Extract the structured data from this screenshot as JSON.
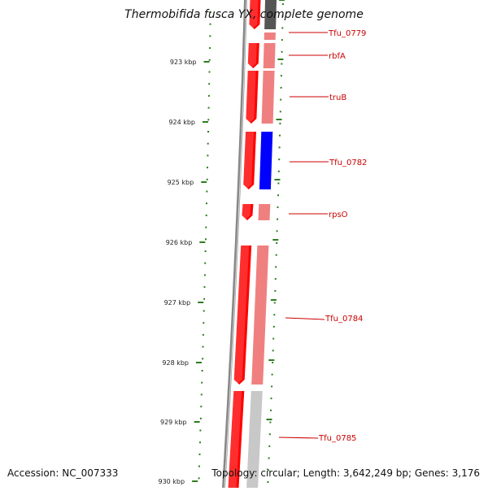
{
  "title": "Thermobifida fusca YX, complete genome",
  "accession": "Accession: NC_007333",
  "summary": "Topology: circular; Length: 3,642,249 bp; Genes: 3,176",
  "colors": {
    "tick": "#2e7d1f",
    "ruler": "#888888",
    "forward_gene": "#ff0000",
    "forward_shade": "#f08080",
    "reverse_blue": "#0000ff",
    "dark_gene": "#555555",
    "light_gene": "#c8c8c8",
    "label": "#cc0000"
  },
  "scale_labels": [
    "923 kbp",
    "924 kbp",
    "925 kbp",
    "926 kbp",
    "927 kbp",
    "928 kbp",
    "929 kbp",
    "930 kbp"
  ],
  "genes": [
    {
      "label": "Tfu_0779"
    },
    {
      "label": "rbfA"
    },
    {
      "label": "truB"
    },
    {
      "label": "Tfu_0782"
    },
    {
      "label": "rpsO"
    },
    {
      "label": "Tfu_0784"
    },
    {
      "label": "Tfu_0785"
    }
  ]
}
